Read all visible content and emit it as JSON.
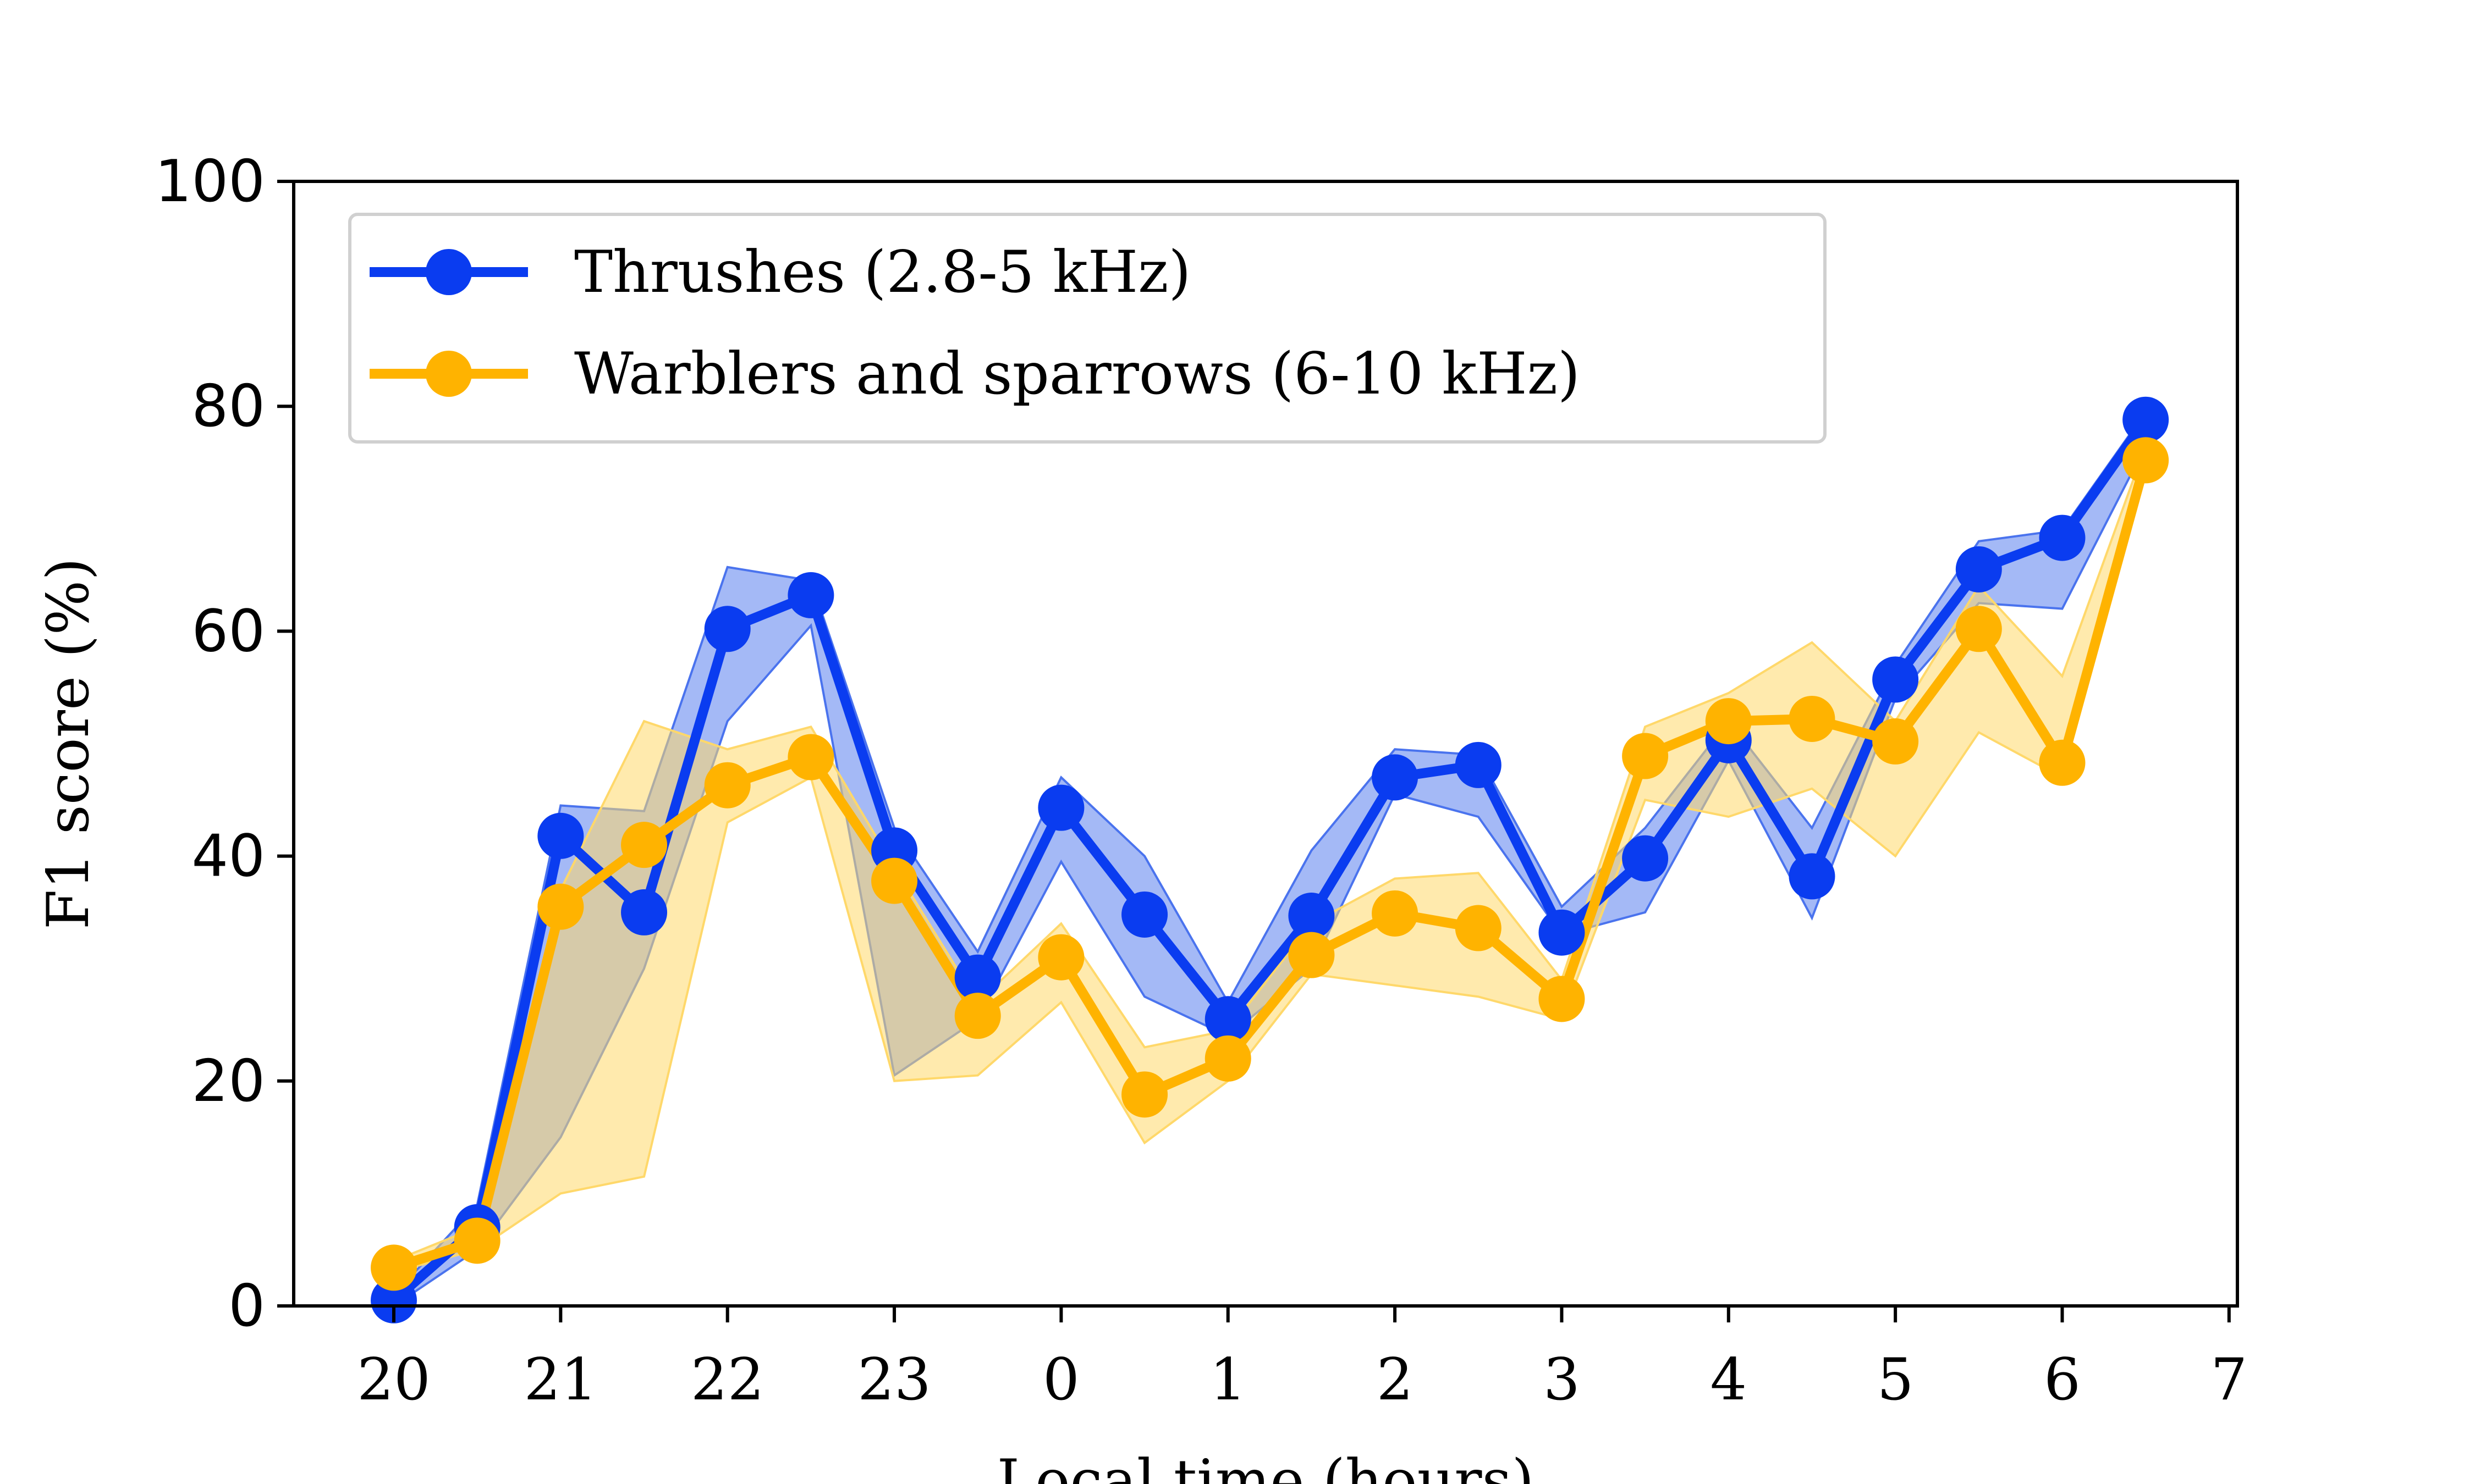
{
  "chart_data": {
    "type": "line",
    "xlabel": "Local time (hours)",
    "ylabel": "F1 score (%)",
    "xlim": [
      19.4,
      31.05
    ],
    "ylim": [
      0,
      100
    ],
    "xtick_values": [
      20,
      21,
      22,
      23,
      24,
      25,
      26,
      27,
      28,
      29,
      30,
      31
    ],
    "xtick_labels": [
      "20",
      "21",
      "22",
      "23",
      "0",
      "1",
      "2",
      "3",
      "4",
      "5",
      "6",
      "7"
    ],
    "ytick_values": [
      0,
      20,
      40,
      60,
      80,
      100
    ],
    "ytick_labels": [
      "0",
      "20",
      "40",
      "60",
      "80",
      "100"
    ],
    "x": [
      20.0,
      20.5,
      21.0,
      21.5,
      22.0,
      22.5,
      23.0,
      23.5,
      24.0,
      24.5,
      25.0,
      25.5,
      26.0,
      26.5,
      27.0,
      27.5,
      28.0,
      28.5,
      29.0,
      29.5,
      30.0,
      30.5
    ],
    "legend_position": "upper-left",
    "grid": false,
    "series": [
      {
        "name": "Thrushes (2.8-5 kHz)",
        "color": "#0a3cf0",
        "band_color": "#4a73ee",
        "values": [
          0.5,
          7.0,
          41.8,
          35.0,
          60.2,
          63.2,
          40.5,
          29.2,
          44.3,
          34.8,
          25.5,
          34.7,
          47.0,
          48.1,
          33.2,
          39.8,
          50.3,
          38.2,
          55.7,
          65.5,
          68.3,
          78.8
        ],
        "lower": [
          0.0,
          5.0,
          15.0,
          30.0,
          52.0,
          60.5,
          20.5,
          25.5,
          39.5,
          27.5,
          24.0,
          30.0,
          45.5,
          43.5,
          33.0,
          35.0,
          48.5,
          34.5,
          54.0,
          62.5,
          62.0,
          76.5
        ],
        "upper": [
          1.0,
          9.0,
          44.5,
          44.0,
          65.7,
          64.5,
          42.5,
          31.5,
          47.0,
          40.0,
          27.0,
          40.5,
          49.5,
          49.0,
          35.5,
          42.5,
          52.0,
          42.5,
          57.0,
          68.0,
          69.0,
          79.5
        ]
      },
      {
        "name": "Warblers and sparrows (6-10 kHz)",
        "color": "#ffb300",
        "band_color": "#ffd86a",
        "values": [
          3.4,
          5.8,
          35.5,
          41.0,
          46.3,
          48.8,
          37.8,
          25.8,
          31.0,
          18.8,
          22.0,
          31.2,
          34.9,
          33.6,
          27.3,
          48.9,
          52.0,
          52.2,
          50.2,
          60.2,
          48.3,
          75.2
        ],
        "lower": [
          3.0,
          5.0,
          10.0,
          11.5,
          43.0,
          47.0,
          20.0,
          20.5,
          27.0,
          14.5,
          20.0,
          29.5,
          28.5,
          27.5,
          25.5,
          45.0,
          43.5,
          46.0,
          40.0,
          51.0,
          47.0,
          74.0
        ],
        "upper": [
          4.0,
          7.0,
          37.0,
          52.0,
          49.5,
          51.5,
          39.0,
          27.0,
          34.0,
          23.0,
          24.5,
          34.0,
          38.0,
          38.5,
          29.0,
          51.5,
          54.5,
          59.0,
          52.0,
          64.0,
          56.0,
          76.5
        ]
      }
    ]
  }
}
